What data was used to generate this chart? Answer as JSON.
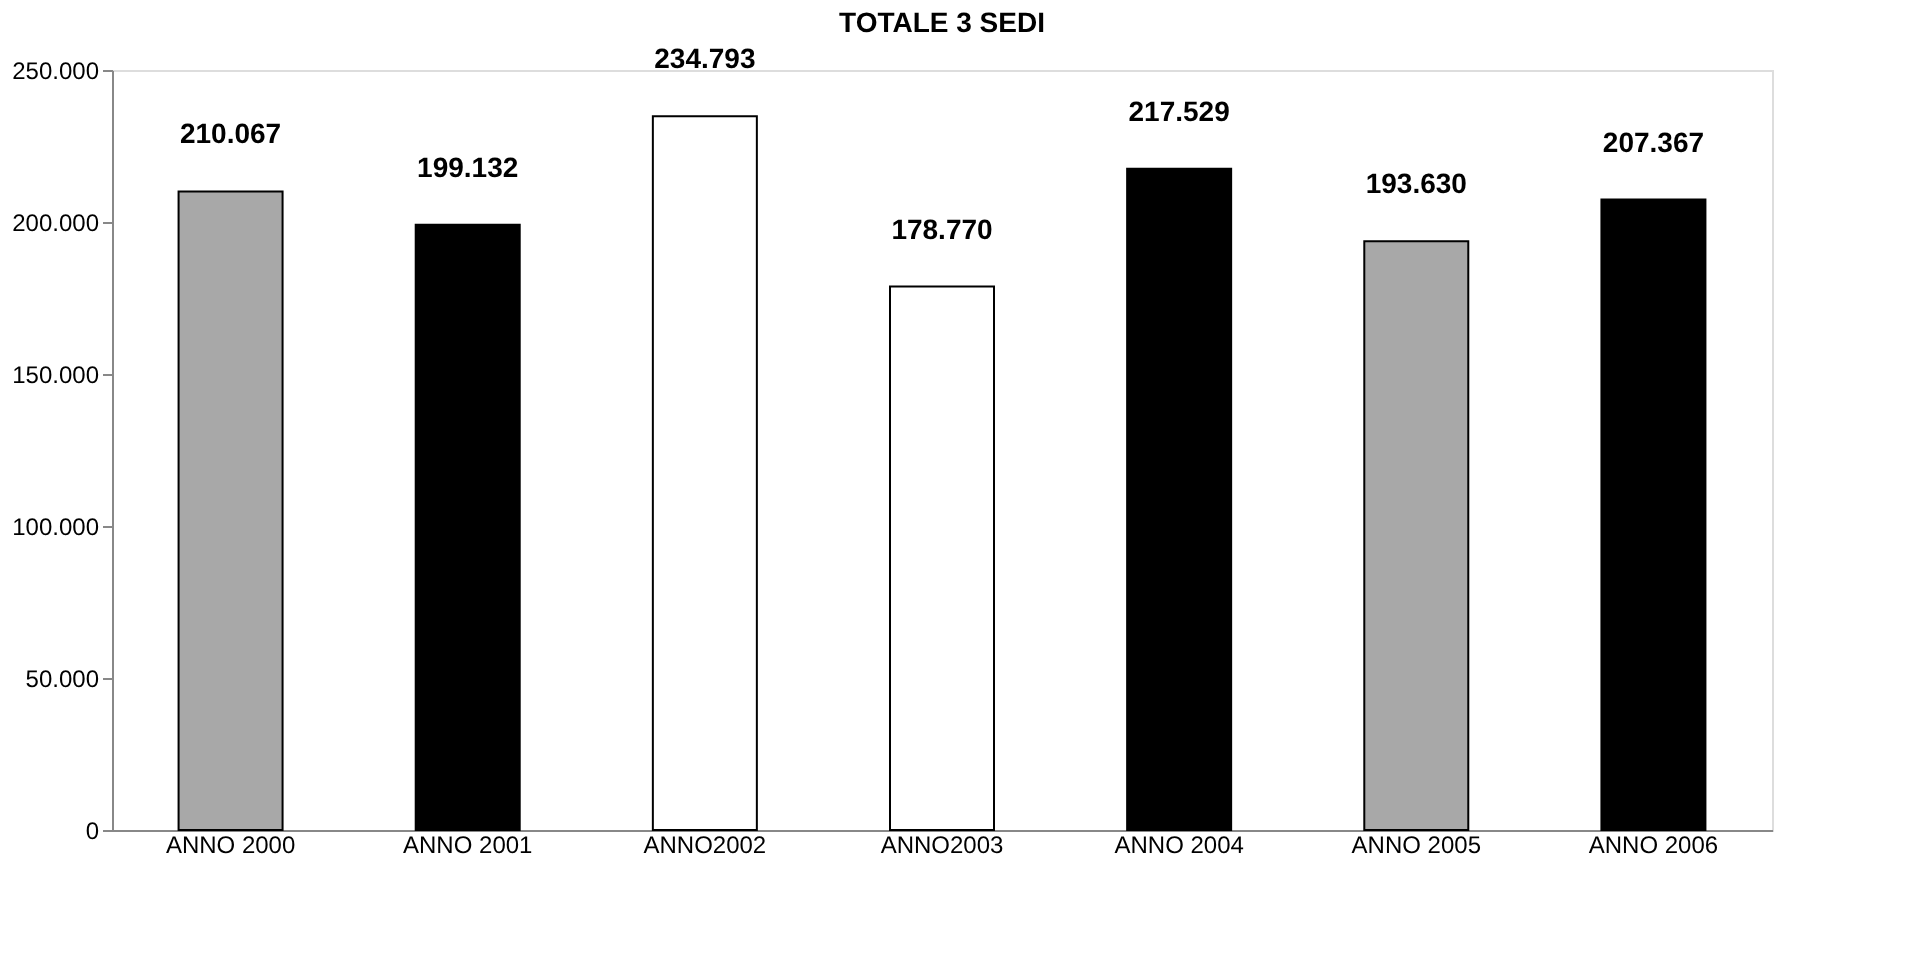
{
  "chart_data": {
    "type": "bar",
    "title": "TOTALE 3 SEDI",
    "categories": [
      "ANNO 2000",
      "ANNO 2001",
      "ANNO2002",
      "ANNO2003",
      "ANNO 2004",
      "ANNO 2005",
      "ANNO 2006"
    ],
    "values": [
      210067,
      199132,
      234793,
      178770,
      217529,
      193630,
      207367
    ],
    "value_labels": [
      "210.067",
      "199.132",
      "234.793",
      "178.770",
      "217.529",
      "193.630",
      "207.367"
    ],
    "colors": [
      "#a8a8a8",
      "#000000",
      "#ffffff",
      "#ffffff",
      "#000000",
      "#a8a8a8",
      "#000000"
    ],
    "ylim": [
      0,
      250000
    ],
    "yticks": [
      {
        "value": 0,
        "label": "0"
      },
      {
        "value": 50000,
        "label": "50.000"
      },
      {
        "value": 100000,
        "label": "100.000"
      },
      {
        "value": 150000,
        "label": "150.000"
      },
      {
        "value": 200000,
        "label": "200.000"
      },
      {
        "value": 250000,
        "label": "250.000"
      }
    ],
    "grid": false
  }
}
